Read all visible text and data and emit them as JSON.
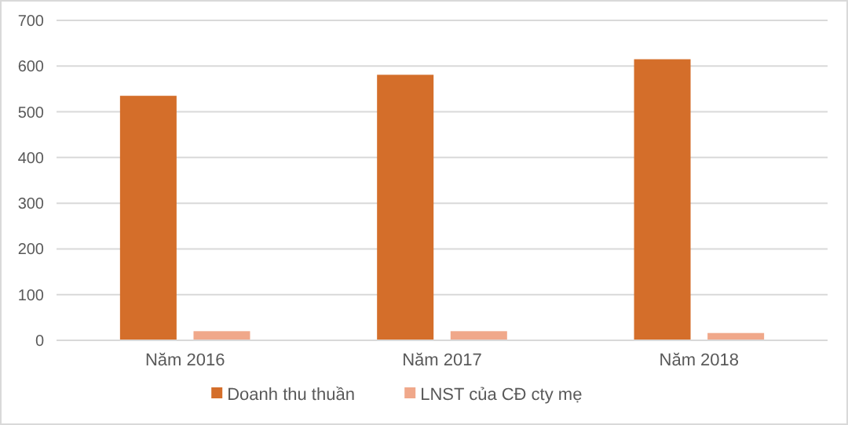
{
  "chart_data": {
    "type": "bar",
    "categories": [
      "Năm 2016",
      "Năm 2017",
      "Năm 2018"
    ],
    "series": [
      {
        "name": "Doanh thu thuần",
        "color": "#d46e2a",
        "values": [
          535,
          581,
          615
        ]
      },
      {
        "name": "LNST của CĐ cty  mẹ",
        "color": "#f0a88a",
        "values": [
          20,
          20,
          16
        ]
      }
    ],
    "ylim": [
      0,
      700
    ],
    "yticks": [
      0,
      100,
      200,
      300,
      400,
      500,
      600,
      700
    ],
    "grid": "y",
    "legend": "bottom"
  }
}
